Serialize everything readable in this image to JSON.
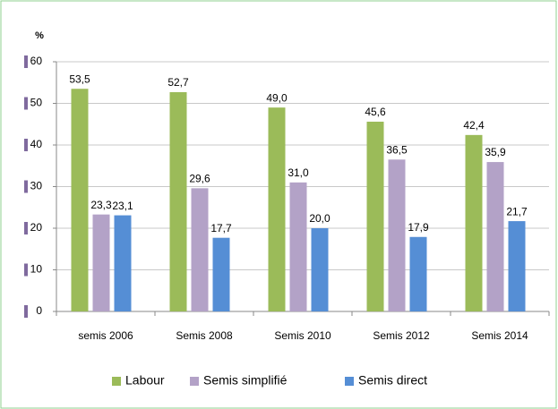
{
  "chart_data": {
    "type": "bar",
    "y_label": "%",
    "categories": [
      "semis 2006",
      "Semis 2008",
      "Semis 2010",
      "Semis 2012",
      "Semis 2014"
    ],
    "series": [
      {
        "name": "Labour",
        "color": "#9bbb59",
        "values": [
          53.5,
          52.7,
          49.0,
          45.6,
          42.4
        ],
        "value_labels": [
          "53,5",
          "52,7",
          "49,0",
          "45,6",
          "42,4"
        ]
      },
      {
        "name": "Semis simplifié",
        "color": "#b3a2c7",
        "values": [
          23.3,
          29.6,
          31.0,
          36.5,
          35.9
        ],
        "value_labels": [
          "23,3",
          "29,6",
          "31,0",
          "36,5",
          "35,9"
        ]
      },
      {
        "name": "Semis direct",
        "color": "#558ed5",
        "values": [
          23.1,
          17.7,
          20.0,
          17.9,
          21.7
        ],
        "value_labels": [
          "23,1",
          "17,7",
          "20,0",
          "17,9",
          "21,7"
        ]
      }
    ],
    "ylim": [
      0,
      60
    ],
    "yticks": [
      0,
      10,
      20,
      30,
      40,
      50,
      60
    ],
    "grid": true,
    "legend": "bottom"
  }
}
